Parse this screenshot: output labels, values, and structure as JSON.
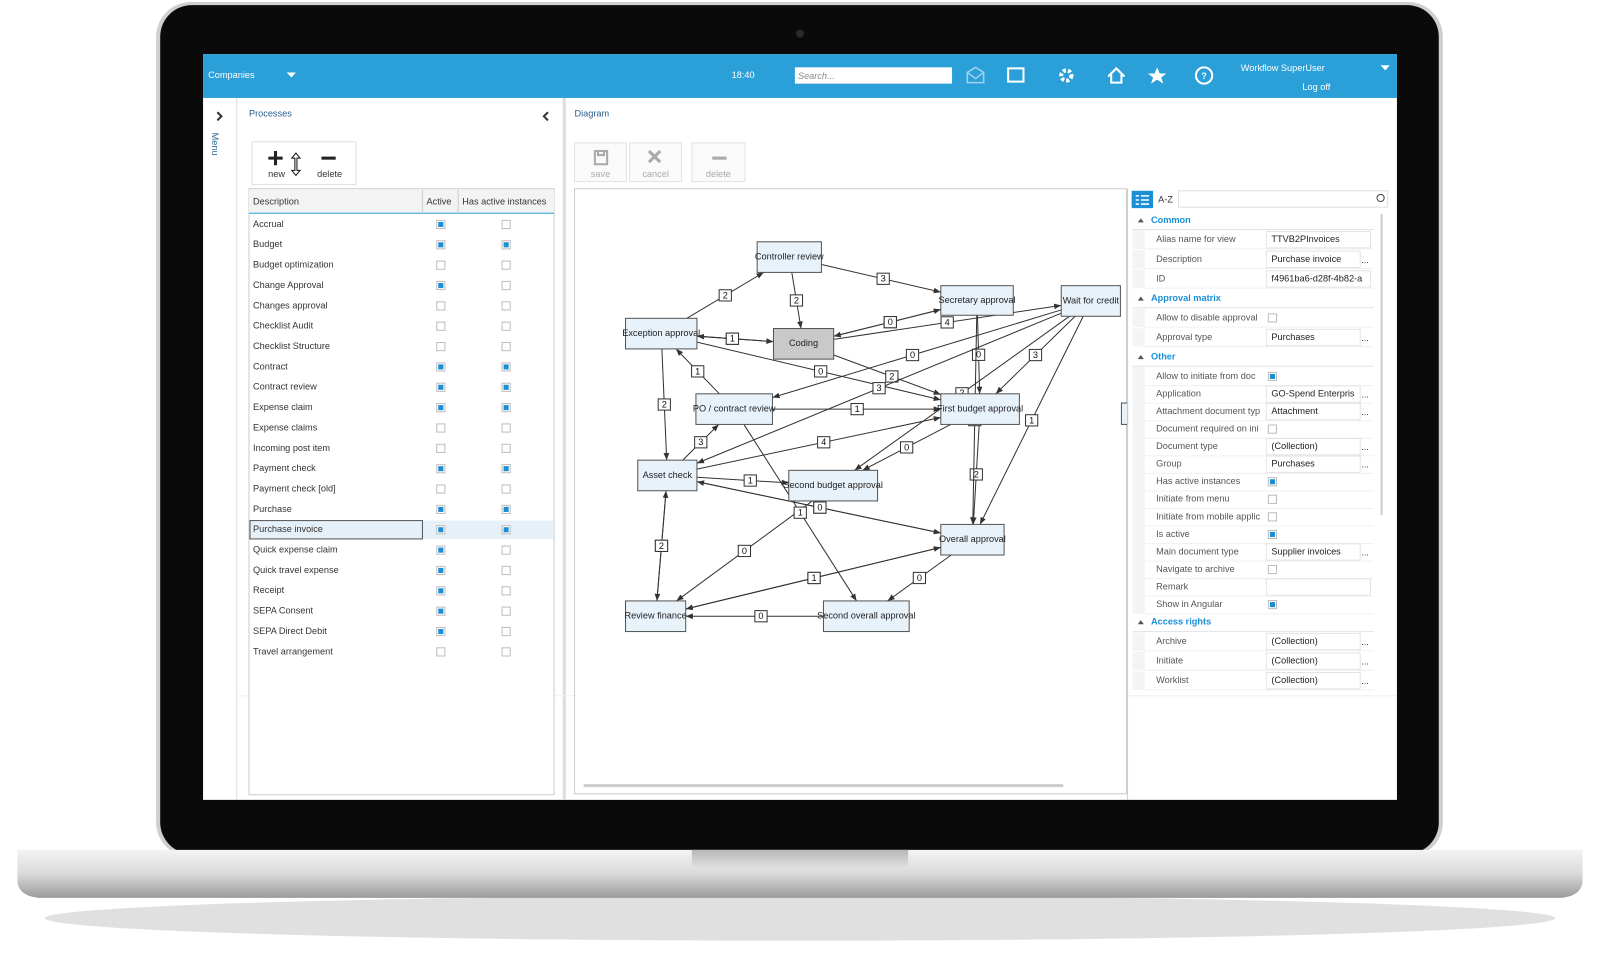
{
  "top_bar": {
    "company_menu": "Companies",
    "time": "18:40",
    "search_placeholder": "Search...",
    "user_menu": "Workflow  SuperUser",
    "log_off": "Log off"
  },
  "side_menu": {
    "label": "Menu"
  },
  "processes": {
    "title": "Processes",
    "toolbar": [
      "new",
      "delete"
    ],
    "columns": [
      "Description",
      "Active",
      "Has active instances"
    ],
    "rows": [
      {
        "description": "Accrual",
        "active": true,
        "has_active_instances": false
      },
      {
        "description": "Budget",
        "active": true,
        "has_active_instances": true
      },
      {
        "description": "Budget optimization",
        "active": false,
        "has_active_instances": false
      },
      {
        "description": "Change Approval",
        "active": true,
        "has_active_instances": false
      },
      {
        "description": "Changes approval",
        "active": false,
        "has_active_instances": false
      },
      {
        "description": "Checklist Audit",
        "active": false,
        "has_active_instances": false
      },
      {
        "description": "Checklist Structure",
        "active": false,
        "has_active_instances": false
      },
      {
        "description": "Contract",
        "active": true,
        "has_active_instances": true
      },
      {
        "description": "Contract review",
        "active": true,
        "has_active_instances": true
      },
      {
        "description": "Expense claim",
        "active": true,
        "has_active_instances": true
      },
      {
        "description": "Expense claims",
        "active": false,
        "has_active_instances": false
      },
      {
        "description": "Incoming post item",
        "active": false,
        "has_active_instances": false
      },
      {
        "description": "Payment check",
        "active": true,
        "has_active_instances": true
      },
      {
        "description": "Payment check [old]",
        "active": false,
        "has_active_instances": false
      },
      {
        "description": "Purchase",
        "active": true,
        "has_active_instances": true
      },
      {
        "description": "Purchase invoice",
        "active": true,
        "has_active_instances": true,
        "selected": true
      },
      {
        "description": "Quick expense claim",
        "active": true,
        "has_active_instances": false
      },
      {
        "description": "Quick travel expense",
        "active": true,
        "has_active_instances": false
      },
      {
        "description": "Receipt",
        "active": true,
        "has_active_instances": false
      },
      {
        "description": "SEPA Consent",
        "active": true,
        "has_active_instances": false
      },
      {
        "description": "SEPA Direct Debit",
        "active": true,
        "has_active_instances": false
      },
      {
        "description": "Travel arrangement",
        "active": false,
        "has_active_instances": false
      }
    ]
  },
  "diagram": {
    "title": "Diagram",
    "toolbar": [
      "save",
      "cancel",
      "delete"
    ],
    "nodes": [
      {
        "label": "Controller review",
        "fill": "#e8f2fa"
      },
      {
        "label": "Secretary approval",
        "fill": "#e8f2fa"
      },
      {
        "label": "Wait for credit",
        "fill": "#e8f2fa"
      },
      {
        "label": "Exception approval",
        "fill": "#e8f2fa"
      },
      {
        "label": "Coding",
        "fill": "#c9c9c9"
      },
      {
        "label": "PO / contract review",
        "fill": "#e8f2fa"
      },
      {
        "label": "First budget approval",
        "fill": "#e8f2fa"
      },
      {
        "label": "Asset check",
        "fill": "#e8f2fa"
      },
      {
        "label": "Second budget approval",
        "fill": "#e8f2fa"
      },
      {
        "label": "Overall approval",
        "fill": "#e8f2fa"
      },
      {
        "label": "Review finance",
        "fill": "#e8f2fa"
      },
      {
        "label": "Second overall approval",
        "fill": "#e8f2fa"
      }
    ],
    "edges": [
      {
        "from": 3,
        "to": 0,
        "label": 2
      },
      {
        "from": 0,
        "to": 1,
        "label": 3
      },
      {
        "from": 0,
        "to": 4,
        "label": 2
      },
      {
        "from": 4,
        "to": 1,
        "label": 3
      },
      {
        "from": 1,
        "to": 4,
        "label": 0
      },
      {
        "from": 3,
        "to": 4,
        "label": 3
      },
      {
        "from": 4,
        "to": 3,
        "label": 1
      },
      {
        "from": 4,
        "to": 2,
        "label": 4
      },
      {
        "from": 2,
        "to": 5,
        "label": 0
      },
      {
        "from": 1,
        "to": 6,
        "label": 0
      },
      {
        "from": 2,
        "to": 6,
        "label": 3
      },
      {
        "from": 2,
        "to": 9,
        "label": 1
      },
      {
        "from": 5,
        "to": 3,
        "label": 1
      },
      {
        "from": 3,
        "to": 6,
        "label": 0
      },
      {
        "from": 4,
        "to": 6,
        "label": 2
      },
      {
        "from": 5,
        "to": 6,
        "label": 1
      },
      {
        "from": 3,
        "to": 7,
        "label": 2
      },
      {
        "from": 2,
        "to": 7,
        "label": 3
      },
      {
        "from": 7,
        "to": 5,
        "label": 3
      },
      {
        "from": 7,
        "to": 6,
        "label": 4
      },
      {
        "from": 2,
        "to": 8,
        "label": 2
      },
      {
        "from": 6,
        "to": 8,
        "label": 0
      },
      {
        "from": 7,
        "to": 9,
        "label": 2
      },
      {
        "from": 6,
        "to": 9,
        "label": 2
      },
      {
        "from": 1,
        "to": 9,
        "label": 1
      },
      {
        "from": 7,
        "to": 8,
        "label": 1
      },
      {
        "from": 10,
        "to": 7,
        "label": 1
      },
      {
        "from": 7,
        "to": 10,
        "label": 2
      },
      {
        "from": 8,
        "to": 10,
        "label": 0
      },
      {
        "from": 5,
        "to": 11,
        "label": 1
      },
      {
        "from": 9,
        "to": 10,
        "label": 2
      },
      {
        "from": 9,
        "to": 7,
        "label": 0
      },
      {
        "from": 9,
        "to": 11,
        "label": 0
      },
      {
        "from": 10,
        "to": 9,
        "label": 1
      },
      {
        "from": 11,
        "to": 10,
        "label": 0
      }
    ]
  },
  "property_grid": {
    "sort_label": "A-Z",
    "ellipsis": "...",
    "sections": [
      {
        "title": "Common",
        "properties": [
          {
            "label": "Alias name for view",
            "value": "TTVB2PInvoices"
          },
          {
            "label": "Description",
            "value": "Purchase invoice",
            "button": true
          },
          {
            "label": "ID",
            "value": "f4961ba6-d28f-4b82-a"
          }
        ]
      },
      {
        "title": "Approval matrix",
        "properties": [
          {
            "label": "Allow to disable approval",
            "checked": false
          },
          {
            "label": "Approval type",
            "value": "Purchases",
            "button": true
          }
        ]
      },
      {
        "title": "Other",
        "properties": [
          {
            "label": "Allow to initiate from doc",
            "checked": true
          },
          {
            "label": "Application",
            "value": "GO-Spend Enterpris",
            "button": true
          },
          {
            "label": "Attachment document typ",
            "value": "Attachment",
            "button": true
          },
          {
            "label": "Document required on ini",
            "checked": false
          },
          {
            "label": "Document type",
            "value": "(Collection)",
            "button": true
          },
          {
            "label": "Group",
            "value": "Purchases",
            "button": true
          },
          {
            "label": "Has active instances",
            "checked": true
          },
          {
            "label": "Initiate from menu",
            "checked": false
          },
          {
            "label": "Initiate from mobile applic",
            "checked": false
          },
          {
            "label": "Is active",
            "checked": true
          },
          {
            "label": "Main document type",
            "value": "Supplier invoices",
            "button": true
          },
          {
            "label": "Navigate to archive",
            "checked": false
          },
          {
            "label": "Remark"
          },
          {
            "label": "Show in Angular",
            "checked": true
          }
        ]
      },
      {
        "title": "Access rights",
        "properties": [
          {
            "label": "Archive",
            "value": "(Collection)",
            "button": true
          },
          {
            "label": "Initiate",
            "value": "(Collection)",
            "button": true
          },
          {
            "label": "Worklist",
            "value": "(Collection)",
            "button": true
          }
        ]
      }
    ]
  }
}
